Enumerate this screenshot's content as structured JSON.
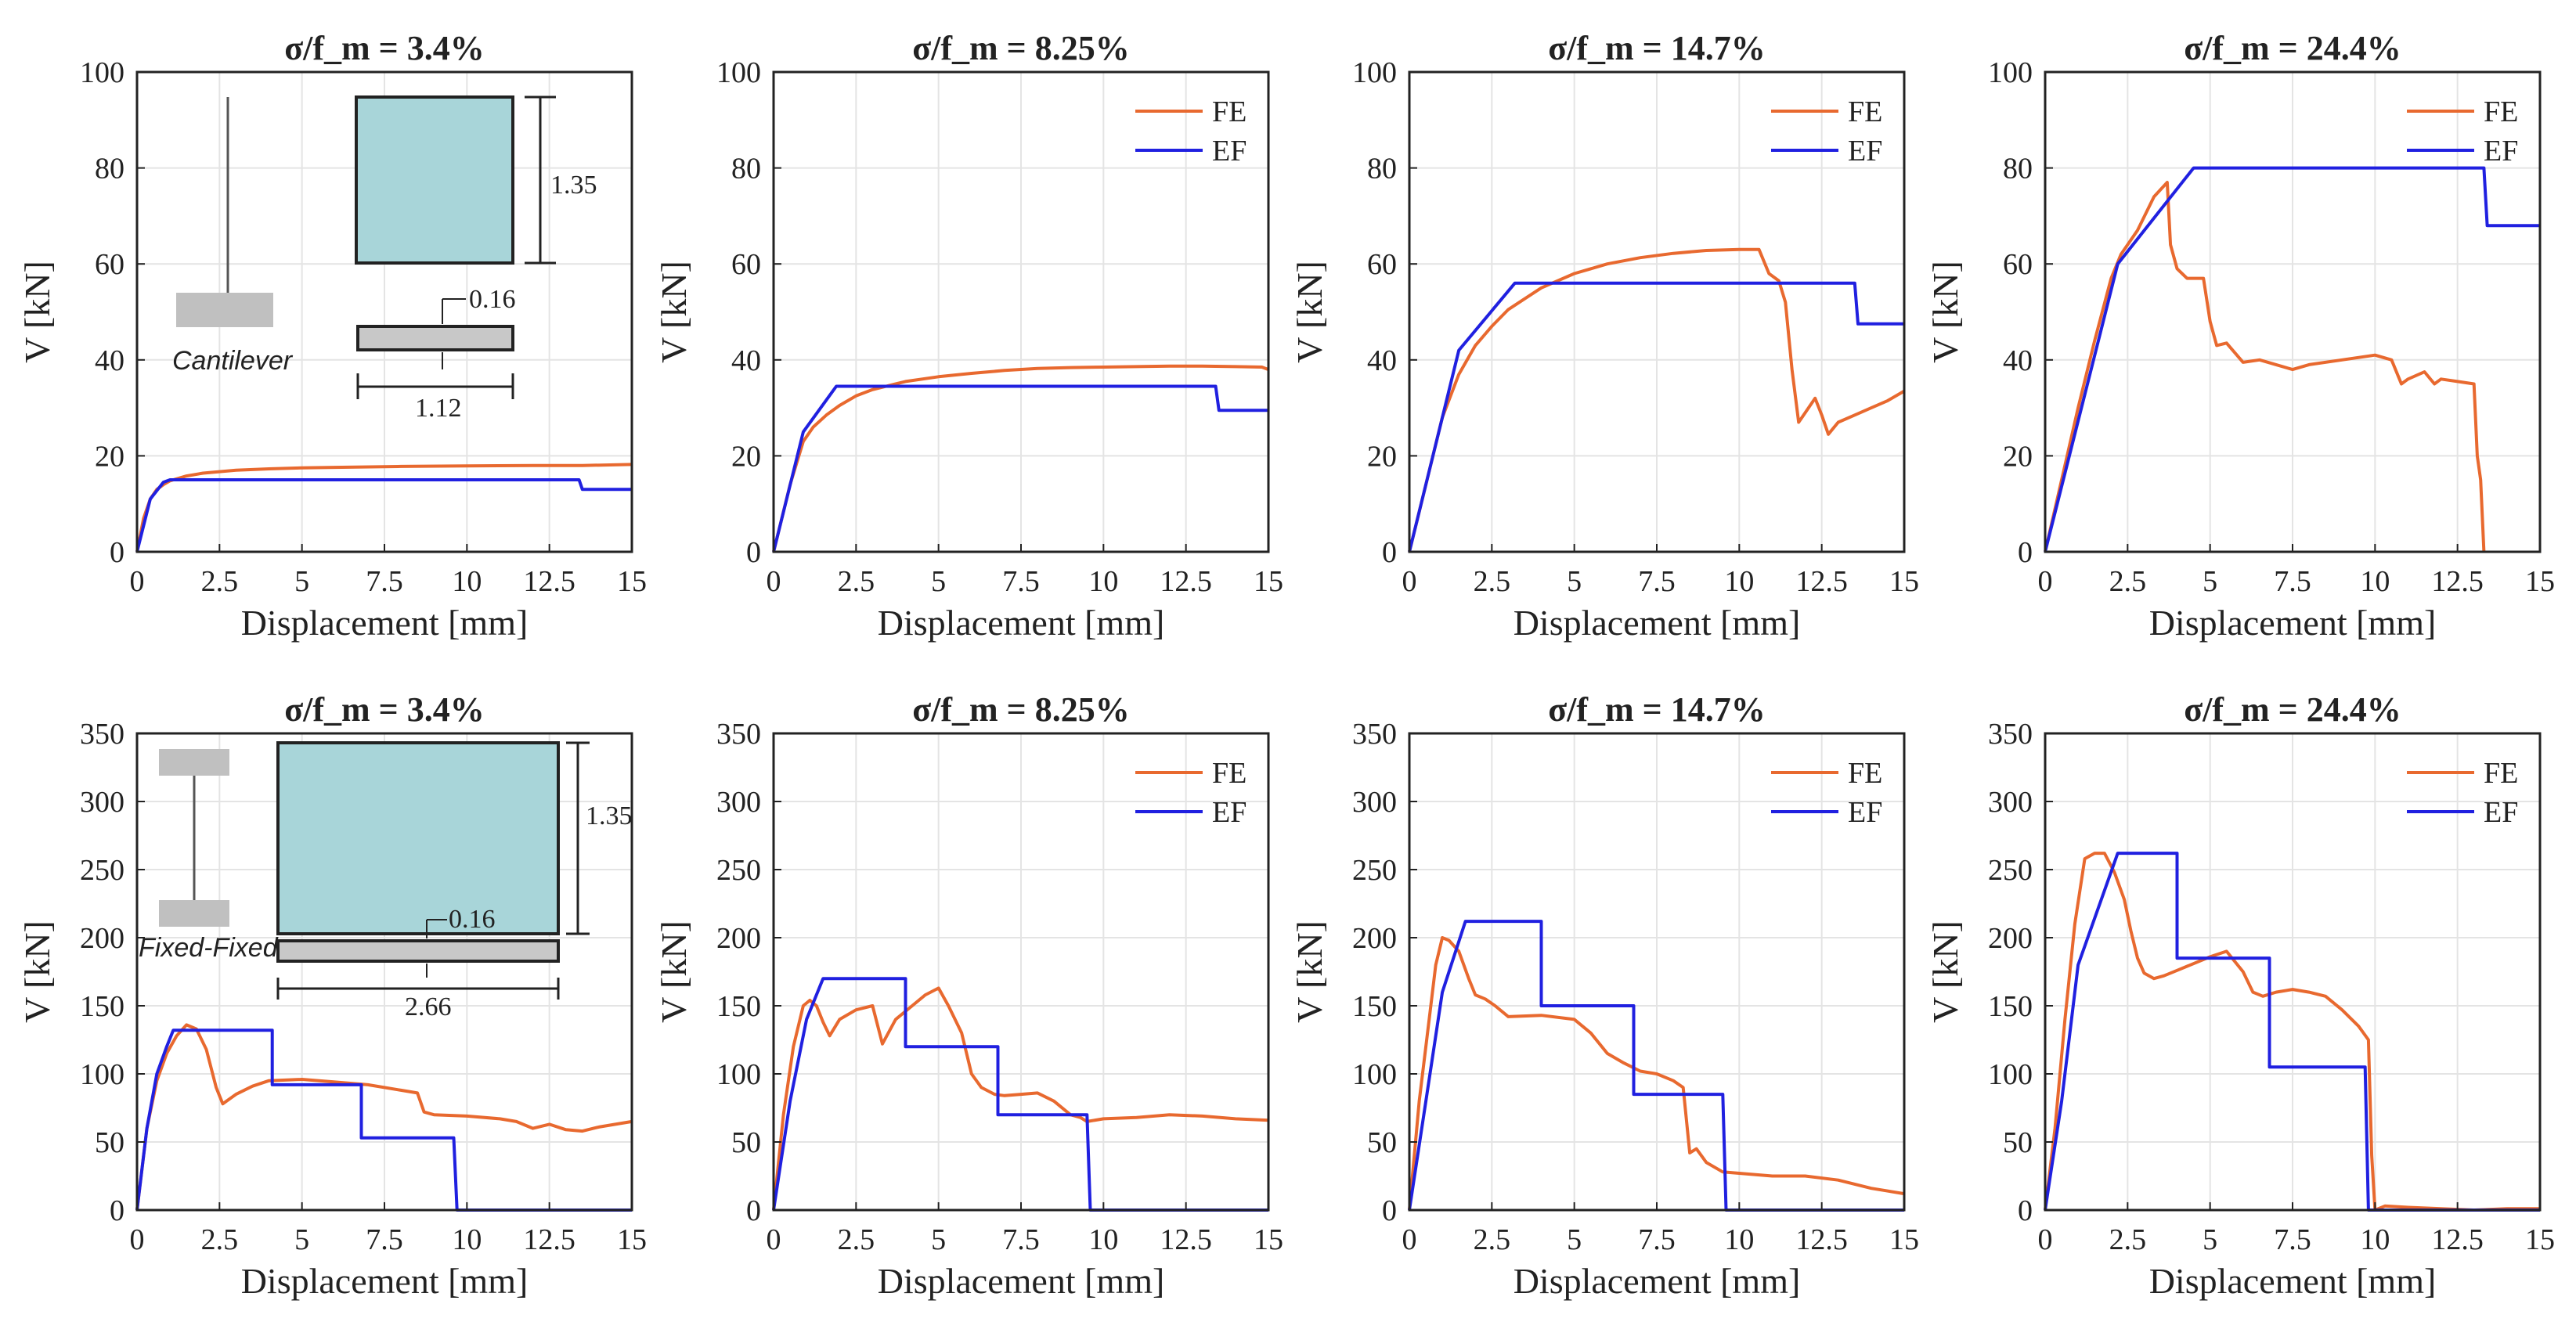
{
  "chart_data": [
    {
      "type": "line",
      "title": "σ/f_m = 3.4%",
      "xlabel": "Displacement [mm]",
      "ylabel": "V [kN]",
      "xlim": [
        0,
        15
      ],
      "ylim": [
        0,
        100
      ],
      "xticks": [
        "0",
        "2.5",
        "5",
        "7.5",
        "10",
        "12.5",
        "15"
      ],
      "yticks": [
        "0",
        "20",
        "40",
        "60",
        "80",
        "100"
      ],
      "grid": true,
      "legend": "none",
      "inset": {
        "boundary": "Cantilever",
        "dims": [
          "1.35",
          "0.16",
          "1.12"
        ]
      },
      "series": [
        {
          "color": "#E8692F",
          "x": [
            0,
            0.2,
            0.4,
            0.6,
            0.8,
            1,
            1.5,
            2,
            3,
            4,
            5,
            6,
            8,
            10,
            12,
            13.5,
            15
          ],
          "y": [
            0,
            7,
            11,
            13,
            14,
            14.8,
            15.8,
            16.4,
            17,
            17.3,
            17.5,
            17.6,
            17.8,
            17.9,
            18,
            18,
            18.2
          ]
        },
        {
          "color": "#2020E0",
          "x": [
            0,
            0.4,
            0.8,
            1,
            13.4,
            13.5,
            15
          ],
          "y": [
            0,
            11,
            14.5,
            15,
            15,
            13,
            13
          ]
        }
      ]
    },
    {
      "type": "line",
      "title": "σ/f_m = 8.25%",
      "xlabel": "Displacement [mm]",
      "ylabel": "V [kN]",
      "xlim": [
        0,
        15
      ],
      "ylim": [
        0,
        100
      ],
      "xticks": [
        "0",
        "2.5",
        "5",
        "7.5",
        "10",
        "12.5",
        "15"
      ],
      "yticks": [
        "0",
        "20",
        "40",
        "60",
        "80",
        "100"
      ],
      "grid": true,
      "legend": "top-right",
      "series": [
        {
          "name": "FE",
          "color": "#E8692F",
          "x": [
            0,
            0.5,
            0.9,
            1.2,
            1.6,
            2,
            2.5,
            3,
            4,
            5,
            6,
            7,
            8,
            9,
            10,
            11,
            12,
            13,
            14,
            14.8,
            15
          ],
          "y": [
            0,
            14,
            23,
            26,
            28.5,
            30.5,
            32.5,
            33.8,
            35.5,
            36.5,
            37.2,
            37.8,
            38.2,
            38.4,
            38.5,
            38.6,
            38.7,
            38.7,
            38.6,
            38.5,
            38
          ]
        },
        {
          "name": "EF",
          "color": "#2020E0",
          "x": [
            0,
            0.9,
            1.9,
            13.4,
            13.5,
            15
          ],
          "y": [
            0,
            25,
            34.5,
            34.5,
            29.5,
            29.5
          ]
        }
      ]
    },
    {
      "type": "line",
      "title": "σ/f_m = 14.7%",
      "xlabel": "Displacement [mm]",
      "ylabel": "V [kN]",
      "xlim": [
        0,
        15
      ],
      "ylim": [
        0,
        100
      ],
      "xticks": [
        "0",
        "2.5",
        "5",
        "7.5",
        "10",
        "12.5",
        "15"
      ],
      "yticks": [
        "0",
        "20",
        "40",
        "60",
        "80",
        "100"
      ],
      "grid": true,
      "legend": "top-right",
      "series": [
        {
          "name": "FE",
          "color": "#E8692F",
          "x": [
            0,
            0.5,
            1,
            1.5,
            2,
            2.5,
            3,
            4,
            5,
            6,
            7,
            8,
            9,
            10,
            10.6,
            10.9,
            11.2,
            11.4,
            11.6,
            11.8,
            12,
            12.3,
            12.5,
            12.7,
            13,
            13.5,
            14,
            14.5,
            15
          ],
          "y": [
            0,
            14,
            28,
            37,
            43,
            47,
            50.5,
            55,
            58,
            60,
            61.3,
            62.2,
            62.8,
            63,
            63,
            58,
            56.5,
            52,
            38,
            27,
            29,
            32,
            28.5,
            24.5,
            27,
            28.5,
            30,
            31.5,
            33.5
          ]
        },
        {
          "name": "EF",
          "color": "#2020E0",
          "x": [
            0,
            1.5,
            3.2,
            13.5,
            13.6,
            15
          ],
          "y": [
            0,
            42,
            56,
            56,
            47.5,
            47.5
          ]
        }
      ]
    },
    {
      "type": "line",
      "title": "σ/f_m = 24.4%",
      "xlabel": "Displacement [mm]",
      "ylabel": "V [kN]",
      "xlim": [
        0,
        15
      ],
      "ylim": [
        0,
        100
      ],
      "xticks": [
        "0",
        "2.5",
        "5",
        "7.5",
        "10",
        "12.5",
        "15"
      ],
      "yticks": [
        "0",
        "20",
        "40",
        "60",
        "80",
        "100"
      ],
      "grid": true,
      "legend": "top-right",
      "series": [
        {
          "name": "FE",
          "color": "#E8692F",
          "x": [
            0,
            0.5,
            1,
            1.5,
            2,
            2.3,
            2.8,
            3.3,
            3.7,
            3.8,
            4,
            4.3,
            4.8,
            5,
            5.2,
            5.5,
            6,
            6.5,
            7,
            7.5,
            8,
            9,
            10,
            10.5,
            10.8,
            11,
            11.5,
            11.8,
            12,
            12.5,
            13,
            13.1,
            13.2,
            13.3
          ],
          "y": [
            0,
            15,
            30,
            44,
            57,
            62,
            67,
            74,
            77,
            64,
            59,
            57,
            57,
            48,
            43,
            43.5,
            39.5,
            40,
            39,
            38,
            39,
            40,
            41,
            40,
            35,
            36,
            37.5,
            35,
            36,
            35.5,
            35,
            20,
            15,
            0
          ]
        },
        {
          "name": "EF",
          "color": "#2020E0",
          "x": [
            0,
            2.2,
            4.5,
            13.3,
            13.4,
            15
          ],
          "y": [
            0,
            60,
            80,
            80,
            68,
            68
          ]
        }
      ]
    },
    {
      "type": "line",
      "title": "σ/f_m = 3.4%",
      "xlabel": "Displacement [mm]",
      "ylabel": "V [kN]",
      "xlim": [
        0,
        15
      ],
      "ylim": [
        0,
        350
      ],
      "xticks": [
        "0",
        "2.5",
        "5",
        "7.5",
        "10",
        "12.5",
        "15"
      ],
      "yticks": [
        "0",
        "50",
        "100",
        "150",
        "200",
        "250",
        "300",
        "350"
      ],
      "grid": true,
      "legend": "none",
      "inset": {
        "boundary": "Fixed-Fixed",
        "dims": [
          "1.35",
          "0.16",
          "2.66"
        ]
      },
      "series": [
        {
          "color": "#E8692F",
          "x": [
            0,
            0.3,
            0.6,
            0.9,
            1.2,
            1.5,
            1.8,
            2.1,
            2.4,
            2.6,
            3,
            3.5,
            4,
            5,
            6,
            7,
            8,
            8.5,
            8.7,
            9,
            10,
            11,
            11.5,
            12,
            12.5,
            13,
            13.5,
            14,
            14.5,
            15
          ],
          "y": [
            0,
            60,
            95,
            115,
            128,
            136,
            133,
            118,
            90,
            78,
            85,
            91,
            95,
            96,
            94,
            92,
            88,
            86,
            72,
            70,
            69,
            67,
            65,
            60,
            63,
            59,
            58,
            61,
            63,
            65
          ]
        },
        {
          "color": "#2020E0",
          "x": [
            0,
            0.3,
            0.6,
            0.9,
            1.1,
            4.1,
            4.1,
            6.8,
            6.8,
            9.6,
            9.7,
            15
          ],
          "y": [
            0,
            60,
            100,
            120,
            132,
            132,
            92,
            92,
            53,
            53,
            0,
            0
          ]
        }
      ]
    },
    {
      "type": "line",
      "title": "σ/f_m = 8.25%",
      "xlabel": "Displacement [mm]",
      "ylabel": "V [kN]",
      "xlim": [
        0,
        15
      ],
      "ylim": [
        0,
        350
      ],
      "xticks": [
        "0",
        "2.5",
        "5",
        "7.5",
        "10",
        "12.5",
        "15"
      ],
      "yticks": [
        "0",
        "50",
        "100",
        "150",
        "200",
        "250",
        "300",
        "350"
      ],
      "grid": true,
      "legend": "top-right",
      "series": [
        {
          "name": "FE",
          "color": "#E8692F",
          "x": [
            0,
            0.3,
            0.6,
            0.9,
            1.1,
            1.3,
            1.5,
            1.7,
            2,
            2.5,
            3,
            3.3,
            3.7,
            4.2,
            4.6,
            5,
            5.3,
            5.7,
            6,
            6.3,
            6.7,
            7,
            7.5,
            8,
            8.5,
            9,
            9.3,
            9.5,
            10,
            11,
            12,
            13,
            14,
            15
          ],
          "y": [
            0,
            70,
            120,
            150,
            154,
            150,
            138,
            128,
            140,
            147,
            150,
            122,
            140,
            150,
            158,
            163,
            150,
            130,
            100,
            90,
            85,
            84,
            85,
            86,
            80,
            70,
            68,
            65,
            67,
            68,
            70,
            69,
            67,
            66
          ]
        },
        {
          "name": "EF",
          "color": "#2020E0",
          "x": [
            0,
            0.5,
            1,
            1.5,
            4,
            4,
            6.8,
            6.8,
            9.5,
            9.6,
            15
          ],
          "y": [
            0,
            80,
            140,
            170,
            170,
            120,
            120,
            70,
            70,
            0,
            0
          ]
        }
      ]
    },
    {
      "type": "line",
      "title": "σ/f_m = 14.7%",
      "xlabel": "Displacement [mm]",
      "ylabel": "V [kN]",
      "xlim": [
        0,
        15
      ],
      "ylim": [
        0,
        350
      ],
      "xticks": [
        "0",
        "2.5",
        "5",
        "7.5",
        "10",
        "12.5",
        "15"
      ],
      "yticks": [
        "0",
        "50",
        "100",
        "150",
        "200",
        "250",
        "300",
        "350"
      ],
      "grid": true,
      "legend": "top-right",
      "series": [
        {
          "name": "FE",
          "color": "#E8692F",
          "x": [
            0,
            0.3,
            0.6,
            0.8,
            1,
            1.2,
            1.5,
            1.8,
            2,
            2.3,
            2.6,
            3,
            4,
            5,
            5.5,
            6,
            6.5,
            7,
            7.5,
            8,
            8.3,
            8.5,
            8.7,
            9,
            9.5,
            10,
            11,
            12,
            13,
            14,
            15
          ],
          "y": [
            0,
            80,
            140,
            180,
            200,
            198,
            190,
            170,
            158,
            155,
            150,
            142,
            143,
            140,
            130,
            115,
            108,
            102,
            100,
            95,
            90,
            42,
            45,
            35,
            28,
            27,
            25,
            25,
            22,
            16,
            12
          ]
        },
        {
          "name": "EF",
          "color": "#2020E0",
          "x": [
            0,
            0.5,
            1,
            1.7,
            4,
            4,
            6.8,
            6.8,
            9.5,
            9.6,
            15
          ],
          "y": [
            0,
            80,
            160,
            212,
            212,
            150,
            150,
            85,
            85,
            0,
            0
          ]
        }
      ]
    },
    {
      "type": "line",
      "title": "σ/f_m = 24.4%",
      "xlabel": "Displacement [mm]",
      "ylabel": "V [kN]",
      "xlim": [
        0,
        15
      ],
      "ylim": [
        0,
        350
      ],
      "xticks": [
        "0",
        "2.5",
        "5",
        "7.5",
        "10",
        "12.5",
        "15"
      ],
      "yticks": [
        "0",
        "50",
        "100",
        "150",
        "200",
        "250",
        "300",
        "350"
      ],
      "grid": true,
      "legend": "top-right",
      "series": [
        {
          "name": "FE",
          "color": "#E8692F",
          "x": [
            0,
            0.3,
            0.6,
            0.9,
            1.2,
            1.5,
            1.8,
            2.1,
            2.4,
            2.6,
            2.8,
            3,
            3.3,
            3.6,
            4,
            5,
            5.5,
            6,
            6.3,
            6.6,
            7,
            7.5,
            8,
            8.5,
            9,
            9.5,
            9.8,
            9.9,
            10,
            10.3,
            11,
            12,
            13,
            14,
            15
          ],
          "y": [
            0,
            60,
            140,
            210,
            258,
            262,
            262,
            248,
            228,
            205,
            185,
            174,
            170,
            172,
            176,
            186,
            190,
            175,
            160,
            157,
            160,
            162,
            160,
            157,
            147,
            135,
            125,
            40,
            0,
            3,
            2,
            1,
            0,
            1,
            1
          ]
        },
        {
          "name": "EF",
          "color": "#2020E0",
          "x": [
            0,
            0.5,
            1,
            2.2,
            4,
            4,
            6.8,
            6.8,
            9.7,
            9.8,
            15
          ],
          "y": [
            0,
            80,
            180,
            262,
            262,
            185,
            185,
            105,
            105,
            0,
            0
          ]
        }
      ]
    }
  ]
}
